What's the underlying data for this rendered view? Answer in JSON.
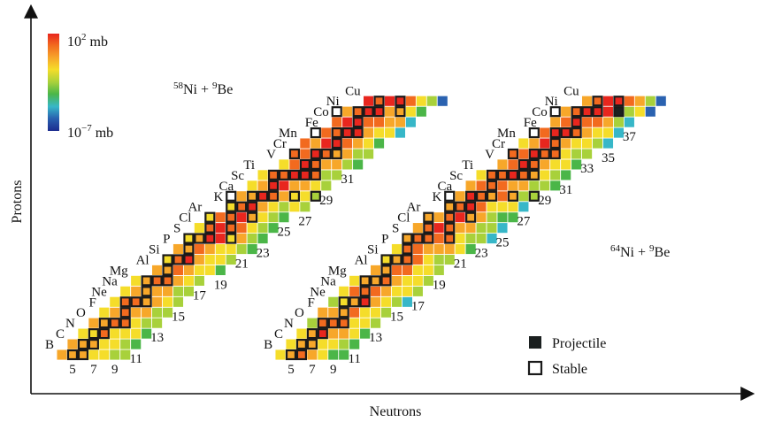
{
  "chart_data": {
    "type": "heatmap",
    "title": "",
    "xlabel": "Neutrons",
    "ylabel": "Protons",
    "color_scale": {
      "max_label": "10",
      "max_exp": "2",
      "max_unit": "mb",
      "min_label": "10",
      "min_exp": "−7",
      "min_unit": "mb",
      "log_range_mb": [
        1e-07,
        100
      ],
      "colors": [
        "#e8261e",
        "#f26a1f",
        "#f7a72a",
        "#f5dd2a",
        "#a8d13b",
        "#4bb648",
        "#37b7c8",
        "#2a62b0",
        "#1d2c8f"
      ]
    },
    "legend": {
      "projectile_label": "Projectile",
      "stable_label": "Stable",
      "projectile_color": "#1b2020",
      "stable_color": "#1a1a1a",
      "placement": "bottom-right"
    },
    "panels": [
      {
        "reaction": {
          "a1": "58",
          "s1": "Ni",
          "op": "+",
          "a2": "9",
          "s2": "Be"
        },
        "projectile": {
          "element": "Ni",
          "Z": 28,
          "N": 30
        },
        "element_labels": [
          "B",
          "C",
          "N",
          "O",
          "F",
          "Ne",
          "Na",
          "Mg",
          "Al",
          "Si",
          "P",
          "S",
          "Cl",
          "Ar",
          "K",
          "Ca",
          "Sc",
          "Ti",
          "V",
          "Cr",
          "Mn",
          "Fe",
          "Co",
          "Ni",
          "Cu"
        ],
        "neutron_labels": [
          "5",
          "7",
          "9",
          "11",
          "13",
          "15",
          "17",
          "19",
          "21",
          "23",
          "25",
          "27",
          "29",
          "31"
        ],
        "cross_section_pattern": "log10 sigma (mb) highest along the stability line near the projectile and decreasing toward neutron-rich and proton-rich edges"
      },
      {
        "reaction": {
          "a1": "64",
          "s1": "Ni",
          "op": "+",
          "a2": "9",
          "s2": "Be"
        },
        "projectile": {
          "element": "Ni",
          "Z": 28,
          "N": 36
        },
        "element_labels": [
          "B",
          "C",
          "N",
          "O",
          "F",
          "Ne",
          "Na",
          "Mg",
          "Al",
          "Si",
          "P",
          "S",
          "Cl",
          "Ar",
          "K",
          "Ca",
          "Sc",
          "Ti",
          "V",
          "Cr",
          "Mn",
          "Fe",
          "Co",
          "Ni",
          "Cu"
        ],
        "neutron_labels": [
          "5",
          "7",
          "9",
          "11",
          "13",
          "15",
          "17",
          "19",
          "21",
          "23",
          "25",
          "27",
          "29",
          "31",
          "33",
          "35",
          "37"
        ],
        "cross_section_pattern": "log10 sigma (mb) highest along the stability line near the projectile and decreasing toward neutron-rich and proton-rich edges"
      }
    ],
    "stable_isotopes": [
      [
        5,
        5
      ],
      [
        5,
        6
      ],
      [
        6,
        6
      ],
      [
        6,
        7
      ],
      [
        7,
        7
      ],
      [
        7,
        8
      ],
      [
        8,
        8
      ],
      [
        8,
        9
      ],
      [
        8,
        10
      ],
      [
        9,
        10
      ],
      [
        10,
        10
      ],
      [
        10,
        11
      ],
      [
        10,
        12
      ],
      [
        11,
        12
      ],
      [
        12,
        12
      ],
      [
        12,
        13
      ],
      [
        12,
        14
      ],
      [
        13,
        14
      ],
      [
        14,
        14
      ],
      [
        14,
        15
      ],
      [
        14,
        16
      ],
      [
        15,
        16
      ],
      [
        16,
        16
      ],
      [
        16,
        17
      ],
      [
        16,
        18
      ],
      [
        16,
        20
      ],
      [
        17,
        18
      ],
      [
        17,
        20
      ],
      [
        18,
        18
      ],
      [
        18,
        20
      ],
      [
        18,
        22
      ],
      [
        19,
        20
      ],
      [
        19,
        21
      ],
      [
        19,
        22
      ],
      [
        20,
        20
      ],
      [
        20,
        22
      ],
      [
        20,
        23
      ],
      [
        20,
        24
      ],
      [
        20,
        26
      ],
      [
        20,
        28
      ],
      [
        21,
        24
      ],
      [
        22,
        24
      ],
      [
        22,
        25
      ],
      [
        22,
        26
      ],
      [
        22,
        27
      ],
      [
        22,
        28
      ],
      [
        23,
        27
      ],
      [
        23,
        28
      ],
      [
        24,
        26
      ],
      [
        24,
        28
      ],
      [
        24,
        29
      ],
      [
        24,
        30
      ],
      [
        25,
        30
      ],
      [
        26,
        28
      ],
      [
        26,
        30
      ],
      [
        26,
        31
      ],
      [
        26,
        32
      ],
      [
        27,
        32
      ],
      [
        28,
        30
      ],
      [
        28,
        32
      ],
      [
        28,
        33
      ],
      [
        28,
        34
      ],
      [
        28,
        36
      ],
      [
        29,
        34
      ],
      [
        29,
        36
      ]
    ]
  }
}
